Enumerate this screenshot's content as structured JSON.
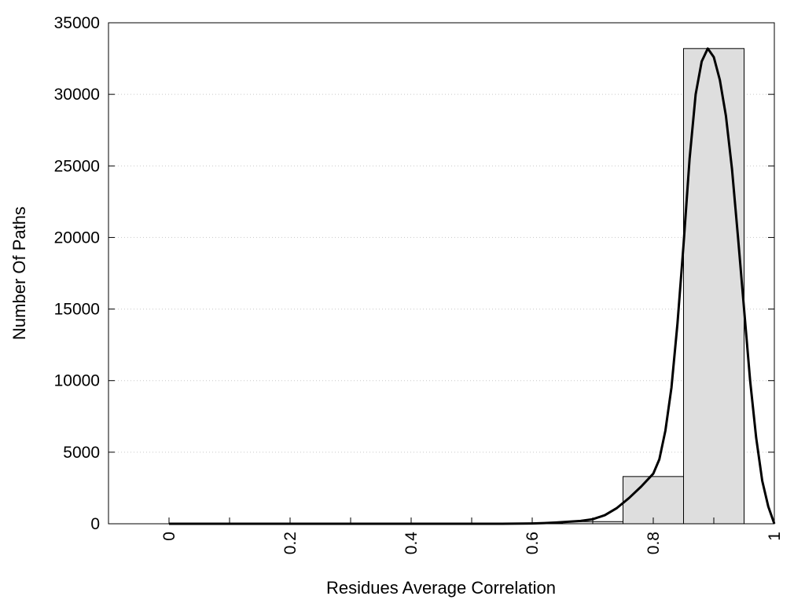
{
  "chart_data": {
    "type": "bar",
    "xlabel": "Residues Average Correlation",
    "ylabel": "Number Of Paths",
    "xlim": [
      -0.1,
      1.0
    ],
    "ylim": [
      0,
      35000
    ],
    "grid": {
      "y": true,
      "x": false,
      "style": "dotted"
    },
    "x_ticks": [
      0,
      0.2,
      0.4,
      0.6,
      0.8,
      1
    ],
    "x_tick_labels": [
      "0",
      "0.2",
      "0.4",
      "0.6",
      "0.8",
      "1"
    ],
    "x_minor_ticks": [
      0.1,
      0.3,
      0.5,
      0.7,
      0.9
    ],
    "y_ticks": [
      0,
      5000,
      10000,
      15000,
      20000,
      25000,
      30000,
      35000
    ],
    "y_tick_labels": [
      "0",
      "5000",
      "10000",
      "15000",
      "20000",
      "25000",
      "30000",
      "35000"
    ],
    "series": [
      {
        "kind": "histogram",
        "bins": [
          {
            "x0": 0.0,
            "x1": 0.1,
            "value": 0
          },
          {
            "x0": 0.1,
            "x1": 0.2,
            "value": 0
          },
          {
            "x0": 0.2,
            "x1": 0.3,
            "value": 0
          },
          {
            "x0": 0.3,
            "x1": 0.4,
            "value": 0
          },
          {
            "x0": 0.4,
            "x1": 0.5,
            "value": 0
          },
          {
            "x0": 0.5,
            "x1": 0.6,
            "value": 0
          },
          {
            "x0": 0.6,
            "x1": 0.65,
            "value": 10
          },
          {
            "x0": 0.65,
            "x1": 0.75,
            "value": 150
          },
          {
            "x0": 0.75,
            "x1": 0.85,
            "value": 3300
          },
          {
            "x0": 0.85,
            "x1": 0.95,
            "value": 33200
          }
        ],
        "color": "#dedede",
        "edge_color": "#000000"
      },
      {
        "kind": "line",
        "color": "#000000",
        "x": [
          0.0,
          0.55,
          0.6,
          0.62,
          0.64,
          0.66,
          0.68,
          0.7,
          0.72,
          0.74,
          0.76,
          0.78,
          0.8,
          0.81,
          0.82,
          0.83,
          0.84,
          0.85,
          0.86,
          0.87,
          0.88,
          0.89,
          0.9,
          0.91,
          0.92,
          0.93,
          0.94,
          0.95,
          0.96,
          0.97,
          0.98,
          0.99,
          1.0
        ],
        "y": [
          0,
          0,
          20,
          50,
          90,
          140,
          200,
          320,
          600,
          1100,
          1800,
          2600,
          3500,
          4500,
          6500,
          9500,
          14000,
          19500,
          25500,
          30000,
          32300,
          33200,
          32600,
          31000,
          28500,
          24800,
          20000,
          15000,
          10000,
          6000,
          3000,
          1200,
          0
        ]
      }
    ]
  }
}
